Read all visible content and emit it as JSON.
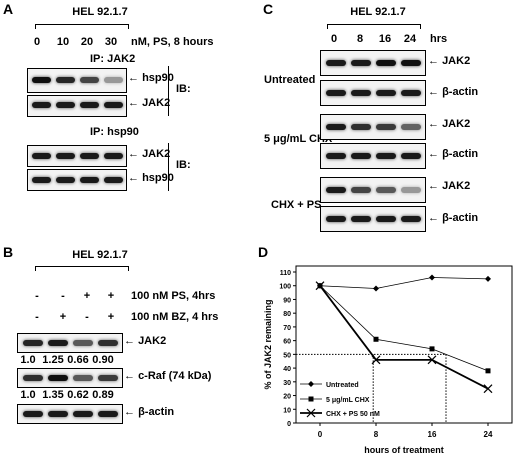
{
  "panel_a": {
    "letter": "A",
    "cell_line": "HEL 92.1.7",
    "doses": [
      "0",
      "10",
      "20",
      "30"
    ],
    "treatment": "nM, PS, 8 hours",
    "ip1": "IP: JAK2",
    "ip2": "IP: hsp90",
    "ib": "IB:",
    "rows": [
      "hsp90",
      "JAK2",
      "JAK2",
      "hsp90"
    ],
    "band_intensity": [
      [
        0.95,
        0.85,
        0.7,
        0.3
      ],
      [
        0.9,
        0.9,
        0.9,
        0.9
      ],
      [
        0.9,
        0.9,
        0.9,
        0.9
      ],
      [
        0.9,
        0.9,
        0.9,
        0.9
      ]
    ]
  },
  "panel_b": {
    "letter": "B",
    "cell_line": "HEL 92.1.7",
    "ps_signs": [
      "-",
      "-",
      "+",
      "+"
    ],
    "bz_signs": [
      "-",
      "+",
      "-",
      "+"
    ],
    "ps_label": "100 nM PS, 4hrs",
    "bz_label": "100 nM BZ, 4 hrs",
    "rows": [
      "JAK2",
      "c-Raf (74 kDa)",
      "β-actin"
    ],
    "jak2_values": [
      "1.0",
      "1.25",
      "0.66",
      "0.90"
    ],
    "craf_values": [
      "1.0",
      "1.35",
      "0.62",
      "0.89"
    ],
    "band_intensity": [
      [
        0.85,
        0.9,
        0.6,
        0.8
      ],
      [
        0.8,
        0.95,
        0.6,
        0.75
      ],
      [
        0.9,
        0.9,
        0.9,
        0.9
      ]
    ]
  },
  "panel_c": {
    "letter": "C",
    "cell_line": "HEL 92.1.7",
    "times": [
      "0",
      "8",
      "16",
      "24"
    ],
    "time_unit": "hrs",
    "groups": [
      {
        "label": "Untreated",
        "rows": [
          "JAK2",
          "β-actin"
        ],
        "intensity": [
          [
            0.9,
            0.9,
            0.95,
            0.95
          ],
          [
            0.9,
            0.9,
            0.9,
            0.9
          ]
        ]
      },
      {
        "label": "5 μg/mL CHX",
        "rows": [
          "JAK2",
          "β-actin"
        ],
        "intensity": [
          [
            0.9,
            0.8,
            0.75,
            0.55
          ],
          [
            0.9,
            0.9,
            0.9,
            0.9
          ]
        ]
      },
      {
        "label": "CHX + PS",
        "rows": [
          "JAK2",
          "β-actin"
        ],
        "intensity": [
          [
            0.9,
            0.7,
            0.6,
            0.3
          ],
          [
            0.9,
            0.9,
            0.9,
            0.9
          ]
        ]
      }
    ]
  },
  "panel_d": {
    "letter": "D"
  },
  "chart_data": {
    "type": "line",
    "xlabel": "hours of treatment",
    "ylabel": "% of JAK2 remaining",
    "x": [
      0,
      8,
      16,
      24
    ],
    "xticks": [
      "0",
      "8",
      "16",
      "24"
    ],
    "ylim": [
      0,
      110
    ],
    "yticks": [
      0,
      10,
      20,
      30,
      40,
      50,
      60,
      70,
      80,
      90,
      100,
      110
    ],
    "grid": false,
    "legend_position": "bottom-left",
    "reference_y": 50,
    "reference_x": [
      7.6,
      18
    ],
    "series": [
      {
        "name": "Untreated",
        "values": [
          100,
          98,
          106,
          105
        ],
        "marker": "diamond"
      },
      {
        "name": "5 μg/mL CHX",
        "values": [
          100,
          61,
          54,
          38
        ],
        "marker": "square"
      },
      {
        "name": "CHX + PS 50 nM",
        "values": [
          100,
          46,
          46,
          25
        ],
        "marker": "x"
      }
    ]
  }
}
